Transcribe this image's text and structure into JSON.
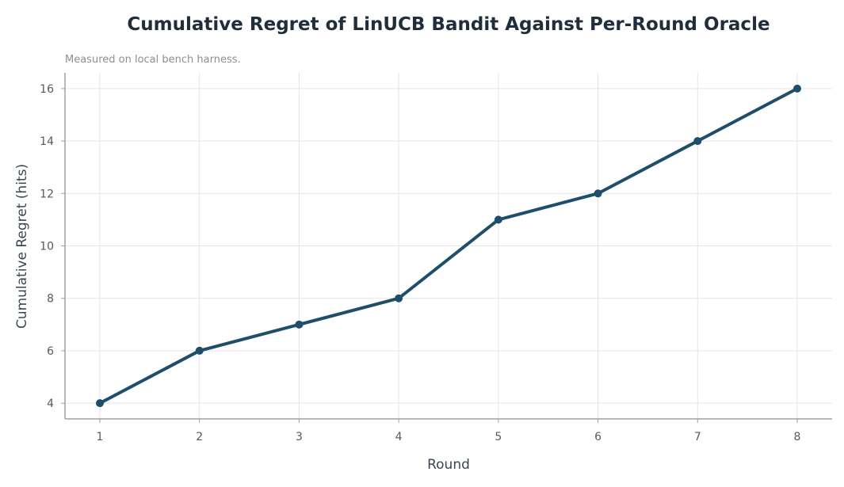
{
  "chart_data": {
    "type": "line",
    "title": "Cumulative Regret of LinUCB Bandit Against Per-Round Oracle",
    "subtitle": "Measured on local bench harness.",
    "xlabel": "Round",
    "ylabel": "Cumulative Regret (hits)",
    "x": [
      1,
      2,
      3,
      4,
      5,
      6,
      7,
      8
    ],
    "x_tick_labels": [
      "1",
      "2",
      "3",
      "4",
      "5",
      "6",
      "7",
      "8"
    ],
    "y_ticks": [
      4,
      6,
      8,
      10,
      12,
      14,
      16
    ],
    "y_tick_labels": [
      "4",
      "6",
      "8",
      "10",
      "12",
      "14",
      "16"
    ],
    "series": [
      {
        "values": [
          4,
          6,
          7,
          8,
          11,
          12,
          14,
          16
        ],
        "color": "#1f4e6b"
      }
    ],
    "xlim": [
      0.65,
      8.35
    ],
    "ylim": [
      3.4,
      16.6
    ],
    "grid": true,
    "legend": "none"
  }
}
